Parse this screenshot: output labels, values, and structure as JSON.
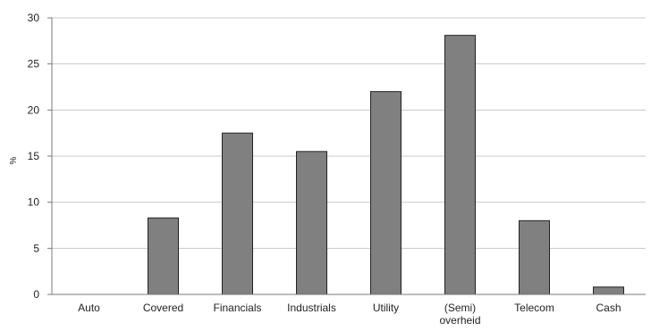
{
  "chart_data": {
    "type": "bar",
    "title": "",
    "xlabel": "",
    "ylabel": "%",
    "ylim": [
      0,
      30
    ],
    "yticks": [
      0,
      5,
      10,
      15,
      20,
      25,
      30
    ],
    "grid": true,
    "legend": "none",
    "bar_color": "#808080",
    "categories": [
      "Auto",
      "Covered",
      "Financials",
      "Industrials",
      "Utility",
      "(Semi) overheid",
      "Telecom",
      "Cash"
    ],
    "values": [
      0,
      8.3,
      17.5,
      15.5,
      22,
      28.1,
      8,
      0.8
    ]
  }
}
